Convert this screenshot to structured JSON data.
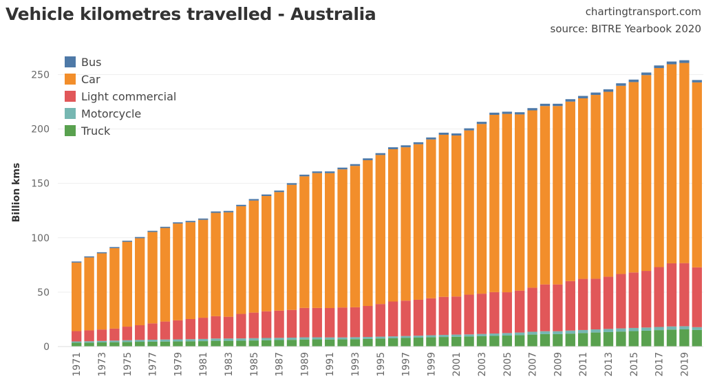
{
  "chart_data": {
    "type": "bar",
    "stacked": true,
    "title": "Vehicle kilometres travelled - Australia",
    "credits": [
      "chartingtransport.com",
      "source: BITRE Yearbook 2020"
    ],
    "ylabel": "Billion kms",
    "xlabel": "",
    "ylim": [
      0,
      268
    ],
    "yticks": [
      0,
      50,
      100,
      150,
      200,
      250
    ],
    "grid": true,
    "legend_position": "top-left",
    "categories": [
      1971,
      1972,
      1973,
      1974,
      1975,
      1976,
      1977,
      1978,
      1979,
      1980,
      1981,
      1982,
      1983,
      1984,
      1985,
      1986,
      1987,
      1988,
      1989,
      1990,
      1991,
      1992,
      1993,
      1994,
      1995,
      1996,
      1997,
      1998,
      1999,
      2000,
      2001,
      2002,
      2003,
      2004,
      2005,
      2006,
      2007,
      2008,
      2009,
      2010,
      2011,
      2012,
      2013,
      2014,
      2015,
      2016,
      2017,
      2018,
      2019,
      2020
    ],
    "x_tick_labels": [
      "1971",
      "1973",
      "1975",
      "1977",
      "1979",
      "1981",
      "1983",
      "1985",
      "1987",
      "1989",
      "1991",
      "1993",
      "1995",
      "1997",
      "1999",
      "2001",
      "2003",
      "2005",
      "2007",
      "2009",
      "2011",
      "2013",
      "2015",
      "2017",
      "2019"
    ],
    "stack_order": [
      "Truck",
      "Motorcycle",
      "Light commercial",
      "Car",
      "Bus"
    ],
    "series": [
      {
        "name": "Bus",
        "color": "#4e79a7",
        "values": [
          1.0,
          1.0,
          1.0,
          1.0,
          1.0,
          1.1,
          1.1,
          1.1,
          1.1,
          1.2,
          1.2,
          1.3,
          1.3,
          1.3,
          1.4,
          1.4,
          1.4,
          1.5,
          1.5,
          1.5,
          1.6,
          1.6,
          1.6,
          1.7,
          1.7,
          1.8,
          1.8,
          1.8,
          1.8,
          1.9,
          1.9,
          1.9,
          2.0,
          2.0,
          2.0,
          2.0,
          2.1,
          2.1,
          2.1,
          2.2,
          2.2,
          2.2,
          2.3,
          2.3,
          2.3,
          2.4,
          2.4,
          2.5,
          2.5,
          2.2
        ]
      },
      {
        "name": "Car",
        "color": "#f28e2b",
        "values": [
          63,
          67,
          70,
          74,
          78,
          80,
          84,
          86,
          89,
          89,
          90,
          95,
          96,
          99,
          103,
          106,
          109,
          115,
          121,
          124,
          124,
          127,
          130,
          134,
          137,
          140,
          141,
          143,
          146,
          149,
          148,
          151,
          156,
          163,
          164,
          162,
          163,
          164,
          164,
          165,
          166,
          169,
          170,
          173,
          175,
          180,
          183,
          183,
          184,
          170
        ]
      },
      {
        "name": "Light commercial",
        "color": "#e15759",
        "values": [
          9.5,
          10,
          10.5,
          11,
          12.5,
          13.5,
          15,
          16.5,
          17.5,
          18.5,
          19.5,
          20.5,
          20,
          22.5,
          23.5,
          24.5,
          25,
          25.5,
          27,
          27,
          27,
          27.5,
          27.5,
          28.5,
          30,
          32,
          32.5,
          33,
          34,
          35,
          35,
          36.5,
          37,
          38,
          37.5,
          38.5,
          40.5,
          43,
          43,
          45.5,
          47,
          46.5,
          48,
          50,
          51,
          52,
          55,
          58,
          58,
          55
        ]
      },
      {
        "name": "Motorcycle",
        "color": "#76b7b2",
        "values": [
          1.2,
          1.3,
          1.4,
          1.5,
          1.6,
          1.7,
          1.8,
          1.9,
          1.9,
          2.0,
          2.0,
          2.1,
          2.1,
          2.1,
          2.1,
          2.1,
          2.0,
          2.0,
          2.0,
          1.9,
          1.9,
          1.8,
          1.8,
          1.8,
          1.8,
          1.8,
          1.8,
          1.8,
          1.9,
          1.9,
          2.0,
          2.0,
          2.1,
          2.2,
          2.3,
          2.4,
          2.6,
          2.7,
          2.7,
          2.8,
          2.8,
          2.9,
          2.9,
          2.9,
          2.9,
          2.9,
          2.9,
          2.9,
          2.9,
          2.6
        ]
      },
      {
        "name": "Truck",
        "color": "#59a14f",
        "values": [
          3.5,
          3.6,
          3.8,
          4,
          4.2,
          4.4,
          4.5,
          4.6,
          4.7,
          4.8,
          5,
          5.3,
          5.3,
          5.4,
          5.6,
          5.8,
          6,
          6.2,
          6.5,
          6.6,
          6.5,
          6.6,
          6.8,
          7,
          7.3,
          7.6,
          7.9,
          8.2,
          8.5,
          8.8,
          9,
          9.2,
          9.5,
          9.8,
          10.1,
          10.5,
          11,
          11.4,
          11.4,
          11.9,
          12.4,
          12.9,
          13.3,
          13.8,
          14.2,
          14.6,
          15.1,
          15.6,
          15.8,
          15.2
        ]
      }
    ]
  }
}
